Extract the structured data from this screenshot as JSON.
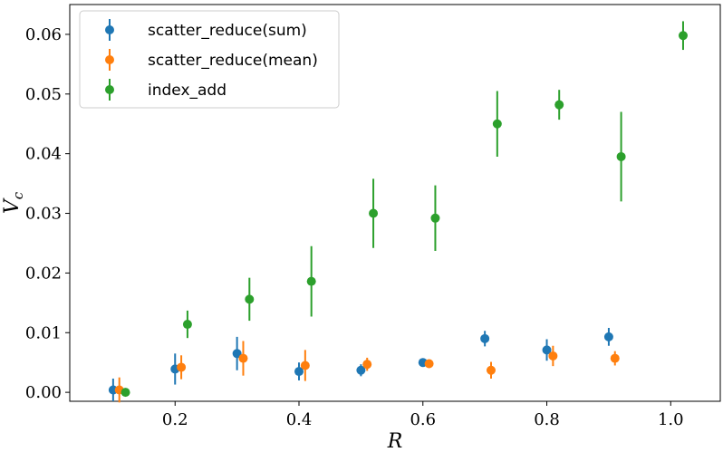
{
  "chart_data": {
    "type": "scatter",
    "title": "",
    "xlabel": "R",
    "ylabel": "V_c",
    "xlim": [
      0.03,
      1.08
    ],
    "ylim": [
      -0.0015,
      0.065
    ],
    "xticks": [
      0.2,
      0.4,
      0.6,
      0.8,
      1.0
    ],
    "xtick_labels": [
      "0.2",
      "0.4",
      "0.6",
      "0.8",
      "1.0"
    ],
    "yticks": [
      0.0,
      0.01,
      0.02,
      0.03,
      0.04,
      0.05,
      0.06
    ],
    "ytick_labels": [
      "0.00",
      "0.01",
      "0.02",
      "0.03",
      "0.04",
      "0.05",
      "0.06"
    ],
    "legend_position": "top-left",
    "grid": false,
    "series": [
      {
        "name": "scatter_reduce(sum)",
        "color": "#1f77b4",
        "x": [
          0.1,
          0.2,
          0.3,
          0.4,
          0.5,
          0.6,
          0.7,
          0.8,
          0.9
        ],
        "y": [
          0.0004,
          0.0039,
          0.0065,
          0.0035,
          0.0037,
          0.005,
          0.009,
          0.0071,
          0.0093
        ],
        "err": [
          0.0019,
          0.0026,
          0.0028,
          0.0015,
          0.001,
          0.0006,
          0.0013,
          0.0018,
          0.0015
        ]
      },
      {
        "name": "scatter_reduce(mean)",
        "color": "#ff7f0e",
        "x": [
          0.11,
          0.21,
          0.31,
          0.41,
          0.51,
          0.61,
          0.71,
          0.81,
          0.91
        ],
        "y": [
          0.0004,
          0.0042,
          0.0057,
          0.0045,
          0.0047,
          0.0048,
          0.0037,
          0.0061,
          0.0057
        ],
        "err": [
          0.0021,
          0.002,
          0.0029,
          0.0026,
          0.0011,
          0.0007,
          0.0014,
          0.0017,
          0.0012
        ]
      },
      {
        "name": "index_add",
        "color": "#2ca02c",
        "x": [
          0.12,
          0.22,
          0.32,
          0.42,
          0.52,
          0.62,
          0.72,
          0.82,
          0.92,
          1.02
        ],
        "y": [
          0.0,
          0.0114,
          0.0156,
          0.0186,
          0.03,
          0.0292,
          0.045,
          0.0482,
          0.0395,
          0.0598
        ],
        "err": [
          0.0003,
          0.0023,
          0.0036,
          0.0059,
          0.0058,
          0.0055,
          0.0055,
          0.0025,
          0.0075,
          0.0024
        ]
      }
    ]
  }
}
